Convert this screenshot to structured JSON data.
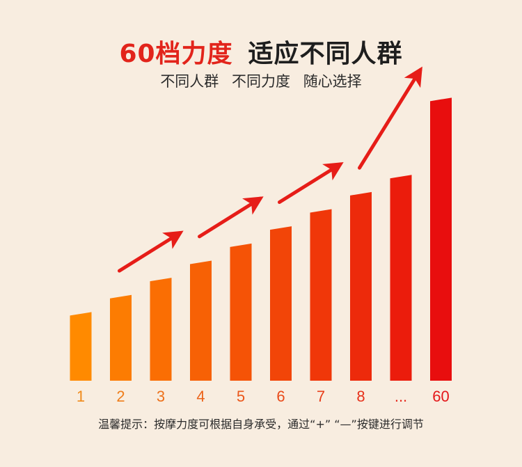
{
  "header": {
    "title_red": "60档力度",
    "title_dark": "适应不同人群",
    "subtitle_parts": [
      "不同人群",
      "不同力度",
      "随心选择"
    ]
  },
  "footer": {
    "note": "温馨提示：按摩力度可根据自身承受，通过“+” “—”按键进行调节"
  },
  "colors": {
    "bar_start": "#ff8a00",
    "bar_end": "#e80e0e",
    "arrow": "#e61d18",
    "label_start": "#f08a1a",
    "label_end": "#e4181a"
  },
  "chart_data": {
    "type": "bar",
    "categories": [
      "1",
      "2",
      "3",
      "4",
      "5",
      "6",
      "7",
      "8",
      "...",
      "60"
    ],
    "values": [
      4,
      5,
      6,
      7,
      8,
      9,
      10,
      11,
      12,
      16.5
    ],
    "title": "",
    "xlabel": "",
    "ylabel": "",
    "ylim": [
      0,
      17
    ],
    "grid": false,
    "legend": "none"
  }
}
